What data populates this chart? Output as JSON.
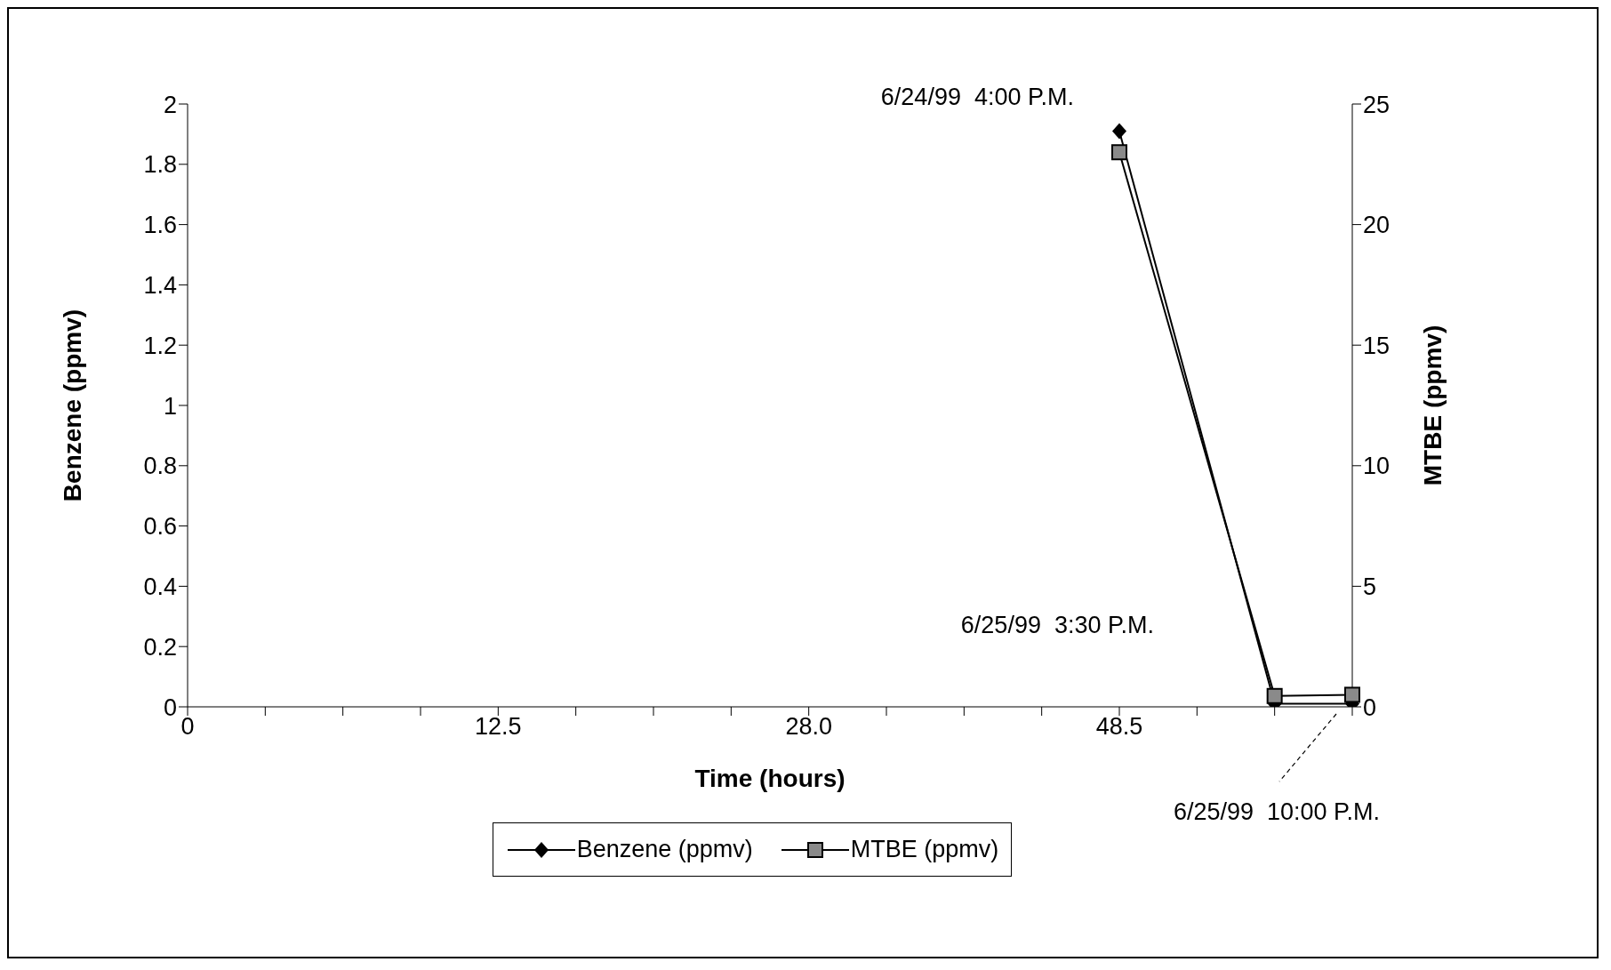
{
  "chart_data": {
    "type": "line",
    "xlabel": "Time (hours)",
    "ylabel": "Benzene (ppmv)",
    "y2label": "MTBE (ppmv)",
    "categories": [
      "0",
      null,
      null,
      null,
      "12.5",
      null,
      null,
      null,
      "28.0",
      null,
      null,
      null,
      "48.5",
      null,
      null,
      null
    ],
    "ylim": [
      0,
      2
    ],
    "yticks": [
      0,
      0.2,
      0.4,
      0.6,
      0.8,
      1,
      1.2,
      1.4,
      1.6,
      1.8,
      2
    ],
    "y2lim": [
      0,
      25
    ],
    "y2ticks": [
      0,
      5,
      10,
      15,
      20,
      25
    ],
    "series": [
      {
        "name": "Benzene (ppmv)",
        "color": "#000000",
        "marker": "diamond",
        "values": [
          null,
          null,
          null,
          null,
          null,
          null,
          null,
          null,
          null,
          null,
          null,
          null,
          1.91,
          null,
          0.01,
          0.01
        ]
      },
      {
        "name": "MTBE (ppmv)",
        "color": "#000000",
        "marker": "square",
        "axis": "y2",
        "values": [
          null,
          null,
          null,
          null,
          null,
          null,
          null,
          null,
          null,
          null,
          null,
          null,
          23,
          null,
          0.45,
          0.5
        ]
      }
    ],
    "annotations": [
      "6/24/99  4:00 P.M.",
      "6/25/99  3:30 P.M.",
      "6/25/99  10:00 P.M."
    ],
    "grid": false,
    "legend": "bottom",
    "line_style": "solid"
  }
}
